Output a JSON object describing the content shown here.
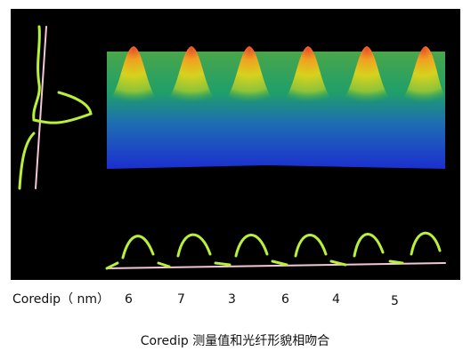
{
  "figure": {
    "label": "Coredip（ nm）",
    "values": [
      6,
      7,
      3,
      6,
      4,
      5
    ]
  },
  "caption": "Coredip 测量值和光纤形貌相吻合"
}
